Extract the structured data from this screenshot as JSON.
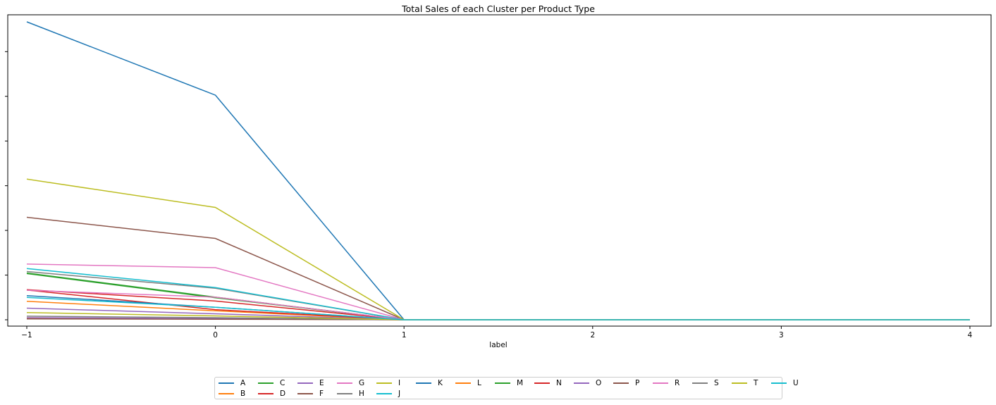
{
  "chart_data": {
    "type": "line",
    "title": "Total Sales of each Cluster per Product Type",
    "xlabel": "label",
    "ylabel": "",
    "x": [
      -1,
      0,
      1,
      2,
      3,
      4
    ],
    "x_tick_labels": [
      "−1",
      "0",
      "1",
      "2",
      "3",
      "4"
    ],
    "xlim": [
      -1,
      4
    ],
    "ylim": [
      0,
      100
    ],
    "y_tick_values": [
      0,
      15,
      30,
      45,
      60,
      75,
      90
    ],
    "grid": false,
    "legend_location": "lower center, outside plot",
    "note": "y values estimated; y-axis tick labels not printed in the original",
    "series": [
      {
        "name": "A",
        "color": "#1f77b4",
        "values": [
          100,
          75.4,
          0,
          0,
          0,
          0
        ]
      },
      {
        "name": "B",
        "color": "#ff7f0e",
        "values": [
          6.2,
          3.0,
          0,
          0,
          0,
          0
        ]
      },
      {
        "name": "C",
        "color": "#2ca02c",
        "values": [
          15.7,
          7.6,
          0,
          0,
          0,
          0
        ]
      },
      {
        "name": "D",
        "color": "#d62728",
        "values": [
          10.0,
          3.4,
          0,
          0,
          0,
          0
        ]
      },
      {
        "name": "E",
        "color": "#9467bd",
        "values": [
          3.9,
          2.0,
          0,
          0,
          0,
          0
        ]
      },
      {
        "name": "F",
        "color": "#8c564b",
        "values": [
          34.4,
          27.3,
          0,
          0,
          0,
          0
        ]
      },
      {
        "name": "G",
        "color": "#e377c2",
        "values": [
          18.7,
          17.5,
          0,
          0,
          0,
          0
        ]
      },
      {
        "name": "H",
        "color": "#7f7f7f",
        "values": [
          16.2,
          10.6,
          0,
          0,
          0,
          0
        ]
      },
      {
        "name": "I",
        "color": "#bcbd22",
        "values": [
          47.2,
          37.7,
          0,
          0,
          0,
          0
        ]
      },
      {
        "name": "J",
        "color": "#17becf",
        "values": [
          17.2,
          10.8,
          0,
          0,
          0,
          0
        ]
      },
      {
        "name": "K",
        "color": "#1f77b4",
        "values": [
          8.1,
          4.2,
          0,
          0,
          0,
          0
        ]
      },
      {
        "name": "L",
        "color": "#ff7f0e",
        "values": [
          0.5,
          0.3,
          0,
          0,
          0,
          0
        ]
      },
      {
        "name": "M",
        "color": "#2ca02c",
        "values": [
          15.5,
          7.4,
          0,
          0,
          0,
          0
        ]
      },
      {
        "name": "N",
        "color": "#d62728",
        "values": [
          10.1,
          6.3,
          0,
          0,
          0,
          0
        ]
      },
      {
        "name": "O",
        "color": "#9467bd",
        "values": [
          0.7,
          0.4,
          0,
          0,
          0,
          0
        ]
      },
      {
        "name": "P",
        "color": "#8c564b",
        "values": [
          0.3,
          0.2,
          0,
          0,
          0,
          0
        ]
      },
      {
        "name": "R",
        "color": "#e377c2",
        "values": [
          9.9,
          7.6,
          0,
          0,
          0,
          0
        ]
      },
      {
        "name": "S",
        "color": "#7f7f7f",
        "values": [
          1.2,
          0.7,
          0,
          0,
          0,
          0
        ]
      },
      {
        "name": "T",
        "color": "#bcbd22",
        "values": [
          2.4,
          1.3,
          0,
          0,
          0,
          0
        ]
      },
      {
        "name": "U",
        "color": "#17becf",
        "values": [
          7.5,
          4.2,
          0,
          0,
          0,
          0
        ]
      }
    ]
  }
}
